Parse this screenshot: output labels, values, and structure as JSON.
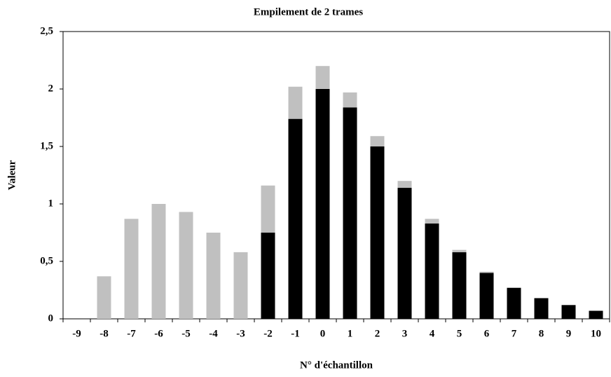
{
  "chart_data": {
    "type": "stacked_bar",
    "title": "Empilement de 2 trames",
    "x_label": "N° d'échantillon",
    "y_label": "Valeur",
    "categories": [
      "-9",
      "-8",
      "-7",
      "-6",
      "-5",
      "-4",
      "-3",
      "-2",
      "-1",
      "0",
      "1",
      "2",
      "3",
      "4",
      "5",
      "6",
      "7",
      "8",
      "9",
      "10"
    ],
    "series": [
      {
        "color": "#000000",
        "values": [
          0,
          0,
          0,
          0,
          0,
          0,
          0,
          0.75,
          1.74,
          2.0,
          1.84,
          1.5,
          1.14,
          0.83,
          0.58,
          0.4,
          0.27,
          0.18,
          0.12,
          0.07
        ]
      },
      {
        "color": "#c0c0c0",
        "values": [
          0,
          0.37,
          0.87,
          1.0,
          0.93,
          0.75,
          0.58,
          0.41,
          0.28,
          0.2,
          0.13,
          0.09,
          0.06,
          0.04,
          0.02,
          0.01,
          0,
          0,
          0,
          0
        ]
      }
    ],
    "ylim": [
      0,
      2.5
    ],
    "yticks": [
      0,
      {
        "value": 0.5,
        "label": "0,5"
      },
      1,
      {
        "value": 1.5,
        "label": "1,5"
      },
      2,
      {
        "value": 2.5,
        "label": "2,5"
      }
    ]
  }
}
